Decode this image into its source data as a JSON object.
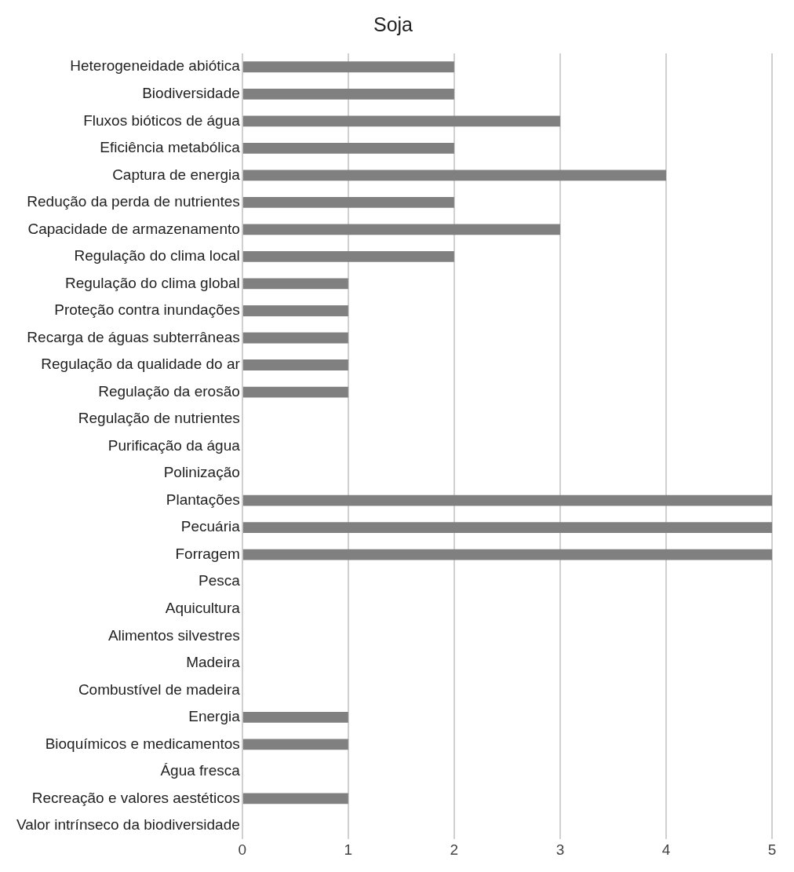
{
  "chart_data": {
    "type": "bar",
    "orientation": "horizontal",
    "title": "Soja",
    "categories": [
      "Heterogeneidade abiótica",
      "Biodiversidade",
      "Fluxos bióticos de água",
      "Eficiência metabólica",
      "Captura de energia",
      "Redução da perda de nutrientes",
      "Capacidade de armazenamento",
      "Regulação do clima local",
      "Regulação do clima global",
      "Proteção contra inundações",
      "Recarga de águas subterrâneas",
      "Regulação da qualidade do ar",
      "Regulação da erosão",
      "Regulação de nutrientes",
      "Purificação da água",
      "Polinização",
      "Plantações",
      "Pecuária",
      "Forragem",
      "Pesca",
      "Aquicultura",
      "Alimentos silvestres",
      "Madeira",
      "Combustível de madeira",
      "Energia",
      "Bioquímicos e medicamentos",
      "Água fresca",
      "Recreação e valores aestéticos",
      "Valor intrínseco da biodiversidade"
    ],
    "values": [
      2,
      2,
      3,
      2,
      4,
      2,
      3,
      2,
      1,
      1,
      1,
      1,
      1,
      0,
      0,
      0,
      5,
      5,
      5,
      0,
      0,
      0,
      0,
      0,
      1,
      1,
      0,
      1,
      0
    ],
    "color": "#808080",
    "xlim": [
      0,
      5
    ],
    "xticks": [
      0,
      1,
      2,
      3,
      4,
      5
    ],
    "grid": "x",
    "legend": false
  }
}
